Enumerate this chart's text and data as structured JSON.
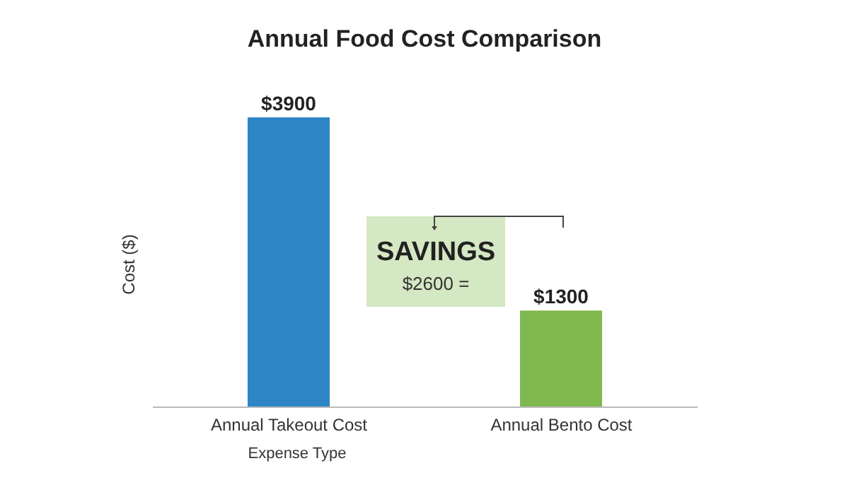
{
  "chart_data": {
    "type": "bar",
    "title": "Annual Food Cost Comparison",
    "xlabel": "Expense Type",
    "ylabel": "Cost ($)",
    "categories": [
      "Annual Takeout Cost",
      "Annual Bento Cost"
    ],
    "values": [
      3900,
      1300
    ],
    "colors": [
      "#2e86c6",
      "#80b850"
    ],
    "value_labels": [
      "$3900",
      "$1300"
    ],
    "annotations": [
      "SAVINGS",
      "$2600 ="
    ]
  }
}
